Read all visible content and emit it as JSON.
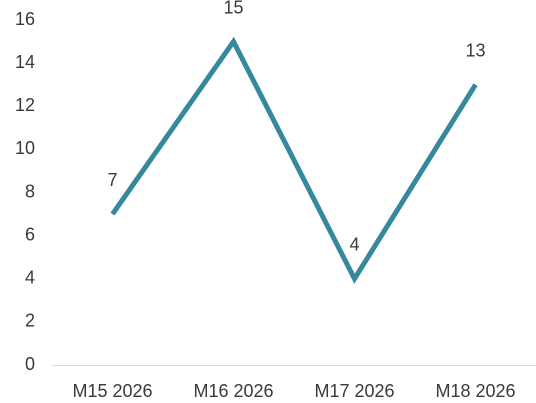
{
  "chart_data": {
    "type": "line",
    "title": "",
    "xlabel": "",
    "ylabel": "",
    "categories": [
      "M15 2026",
      "M16 2026",
      "M17 2026",
      "M18 2026"
    ],
    "series": [
      {
        "values": [
          7,
          15,
          4,
          13
        ],
        "color": "#36889c"
      }
    ],
    "ylim": [
      0,
      16
    ],
    "yticks": [
      0,
      2,
      4,
      6,
      8,
      10,
      12,
      14,
      16
    ],
    "data_labels": true,
    "grid": false,
    "legend": "none"
  }
}
